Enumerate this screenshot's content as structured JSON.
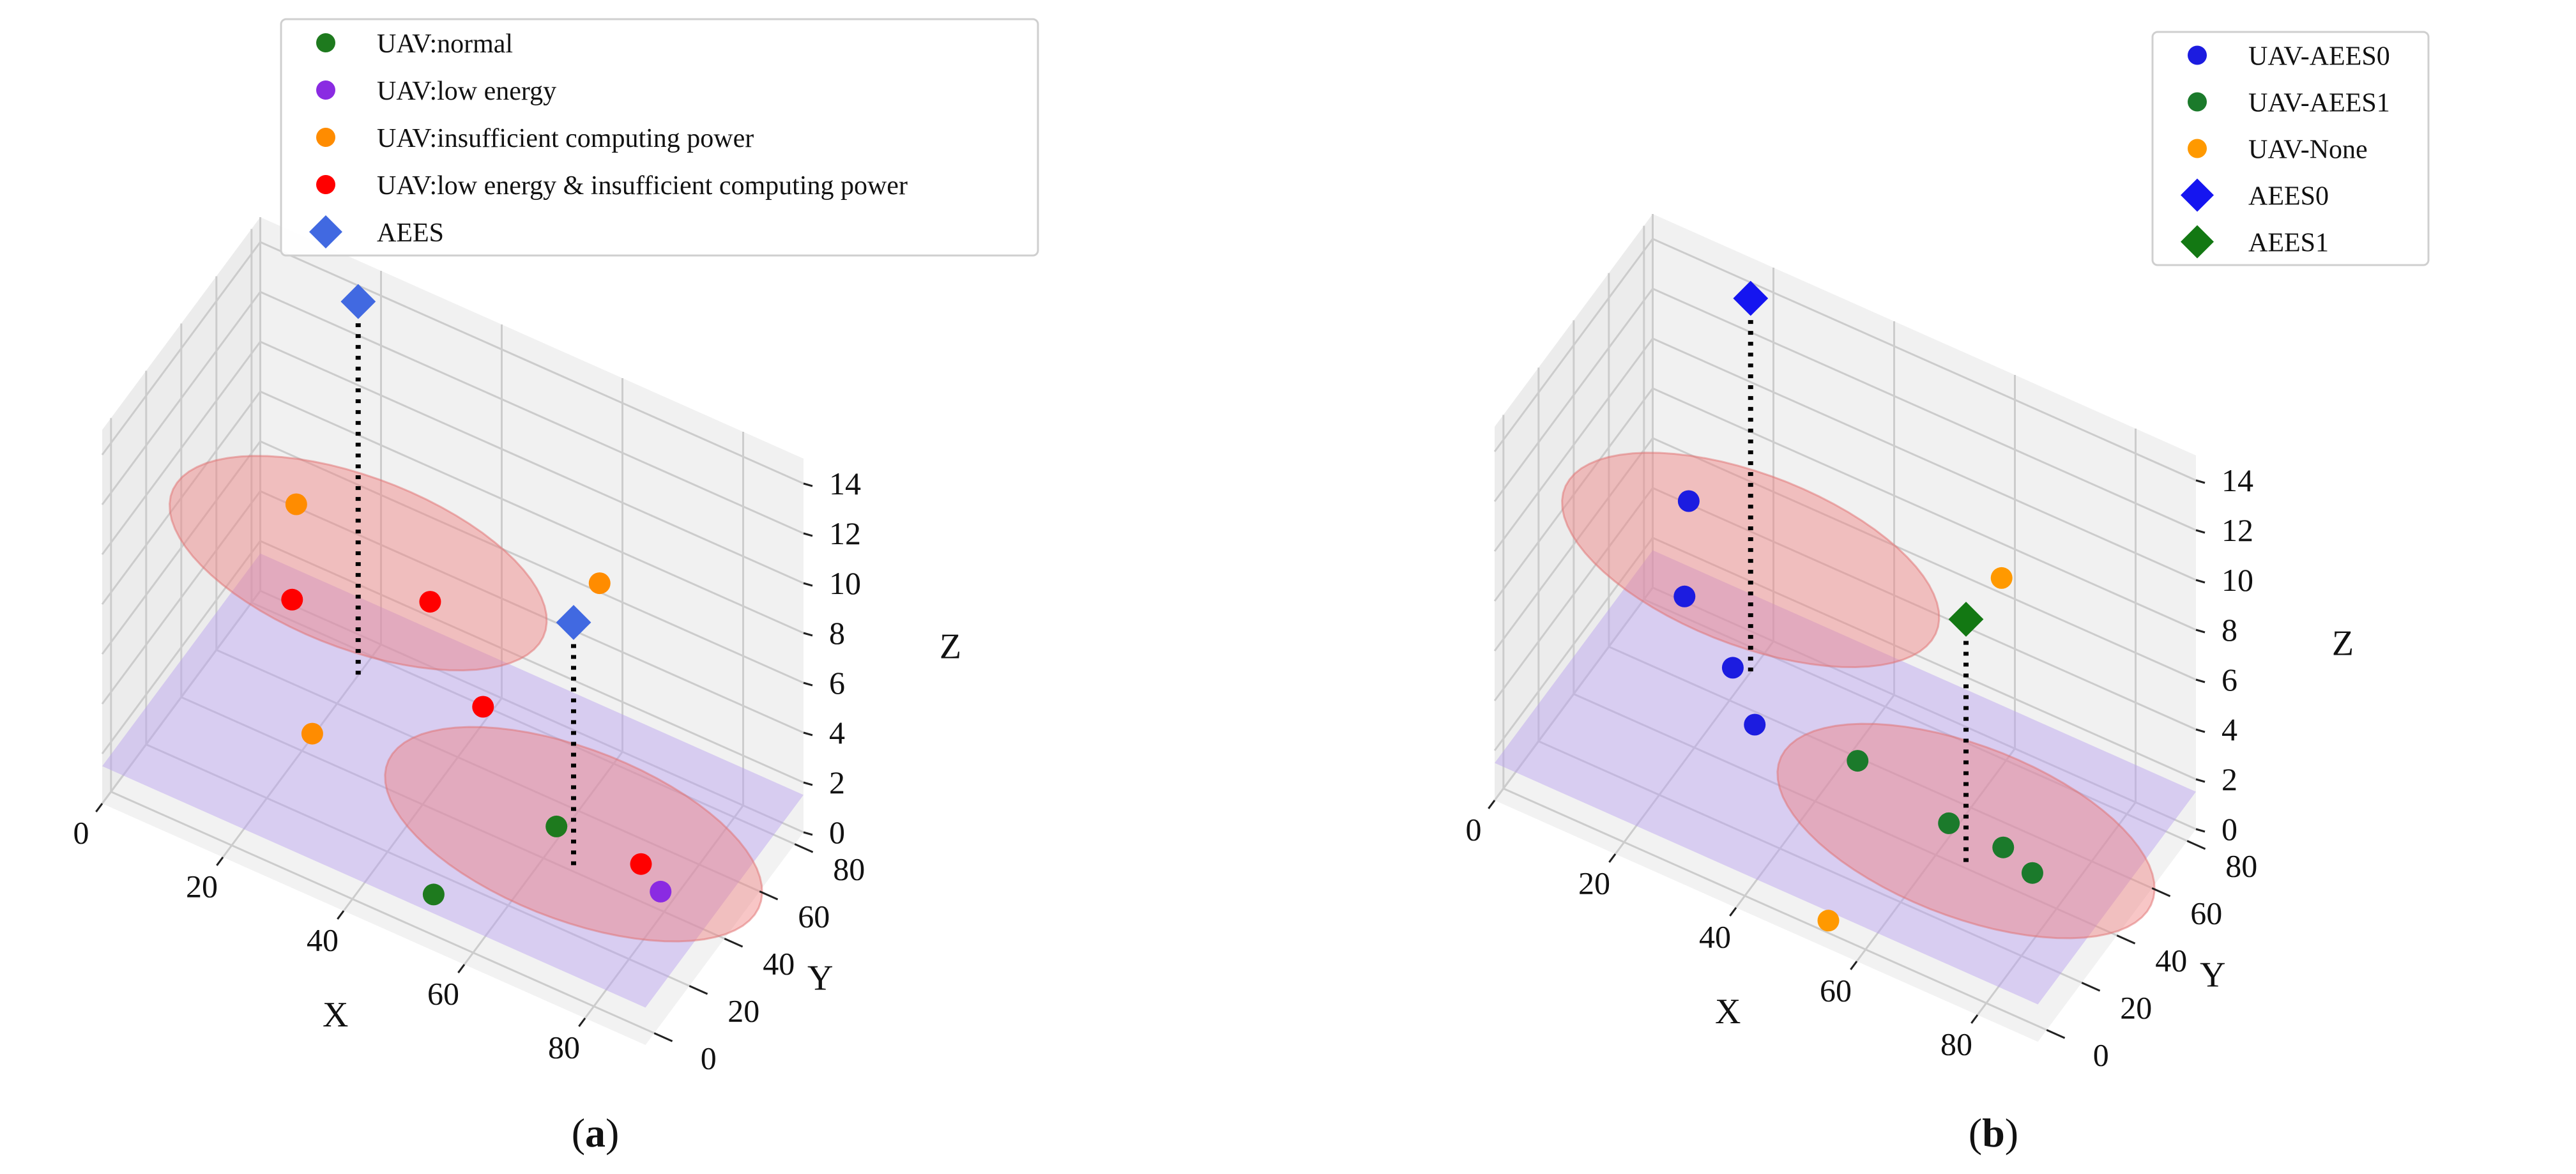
{
  "figure": {
    "panels": [
      {
        "paren_open": "(",
        "letter": "a",
        "paren_close": ")"
      },
      {
        "paren_open": "(",
        "letter": "b",
        "paren_close": ")"
      }
    ]
  },
  "colors": {
    "normal": "#1e7a1e",
    "low_energy": "#8a2be2",
    "insufficient": "#ff8c00",
    "both": "#ff0000",
    "aees": "#4169e1",
    "aees0_uav": "#1c1ce0",
    "aees1_uav": "#1b7a2b",
    "none": "#ff9900",
    "aees0": "#1515f0",
    "aees1": "#137813",
    "disk_fill": "#f08080",
    "plane_fill": "#b8a0f0",
    "pane": "#ececec"
  },
  "chart_data": [
    {
      "type": "scatter",
      "panel": "a",
      "title": "",
      "xlabel": "X",
      "ylabel": "Y",
      "zlabel": "Z",
      "xlim": [
        0,
        90
      ],
      "ylim": [
        -5,
        85
      ],
      "zlim": [
        0,
        15
      ],
      "xticks": [
        0,
        20,
        40,
        60,
        80
      ],
      "yticks": [
        0,
        20,
        40,
        60,
        80
      ],
      "zticks": [
        0,
        2,
        4,
        6,
        8,
        10,
        12,
        14
      ],
      "legend_position": "top-center",
      "series": [
        {
          "name": "UAV:normal",
          "marker": "circle",
          "color": "#1e7a1e",
          "points": [
            [
              52,
              5,
              1
            ],
            [
              61,
              44,
              1
            ]
          ]
        },
        {
          "name": "UAV:low energy",
          "marker": "circle",
          "color": "#8a2be2",
          "points": [
            [
              80,
              38,
              1
            ]
          ]
        },
        {
          "name": "UAV:insufficient computing power",
          "marker": "circle",
          "color": "#ff8c00",
          "points": [
            [
              8,
              78,
              5
            ],
            [
              22,
              39,
              1
            ],
            [
              60,
              72,
              8
            ]
          ]
        },
        {
          "name": "UAV:low energy & insufficient computing power",
          "marker": "circle",
          "color": "#ff0000",
          "points": [
            [
              14,
              55,
              4
            ],
            [
              50,
              40,
              5
            ],
            [
              36,
              58,
              6
            ],
            [
              75,
              44,
              1
            ]
          ]
        },
        {
          "name": "AEES",
          "marker": "diamond",
          "color": "#4169e1",
          "points": [
            [
              20,
              72,
              15
            ],
            [
              65,
              40,
              10
            ]
          ]
        }
      ],
      "coverage_disks": [
        {
          "center": [
            20,
            72,
            4.5
          ],
          "radius": 30
        },
        {
          "center": [
            65,
            40,
            1.5
          ],
          "radius": 30
        }
      ],
      "ground_plane_z": 1.5
    },
    {
      "type": "scatter",
      "panel": "b",
      "title": "",
      "xlabel": "X",
      "ylabel": "Y",
      "zlabel": "Z",
      "xlim": [
        0,
        90
      ],
      "ylim": [
        -5,
        85
      ],
      "zlim": [
        0,
        15
      ],
      "xticks": [
        0,
        20,
        40,
        60,
        80
      ],
      "yticks": [
        0,
        20,
        40,
        60,
        80
      ],
      "zticks": [
        0,
        2,
        4,
        6,
        8,
        10,
        12,
        14
      ],
      "legend_position": "top-right",
      "series": [
        {
          "name": "UAV-AEES0",
          "marker": "circle",
          "color": "#1c1ce0",
          "points": [
            [
              8,
              78,
              5
            ],
            [
              14,
              55,
              4
            ],
            [
              30,
              40,
              2
            ],
            [
              22,
              55,
              2
            ]
          ]
        },
        {
          "name": "UAV-AEES1",
          "marker": "circle",
          "color": "#1b7a2b",
          "points": [
            [
              45,
              47,
              1.5
            ],
            [
              61,
              44,
              1
            ],
            [
              76,
              40,
              1
            ],
            [
              70,
              44,
              1
            ]
          ]
        },
        {
          "name": "UAV-None",
          "marker": "circle",
          "color": "#ff9900",
          "points": [
            [
              55,
              -4,
              1
            ],
            [
              61,
              74,
              8
            ]
          ]
        },
        {
          "name": "AEES0",
          "marker": "diamond",
          "color": "#1515f0",
          "points": [
            [
              20,
              72,
              15
            ]
          ]
        },
        {
          "name": "AEES1",
          "marker": "diamond",
          "color": "#137813",
          "points": [
            [
              65,
              40,
              10
            ]
          ]
        }
      ],
      "coverage_disks": [
        {
          "center": [
            20,
            72,
            4.5
          ],
          "radius": 30
        },
        {
          "center": [
            65,
            40,
            1.5
          ],
          "radius": 30
        }
      ],
      "ground_plane_z": 1.5
    }
  ]
}
